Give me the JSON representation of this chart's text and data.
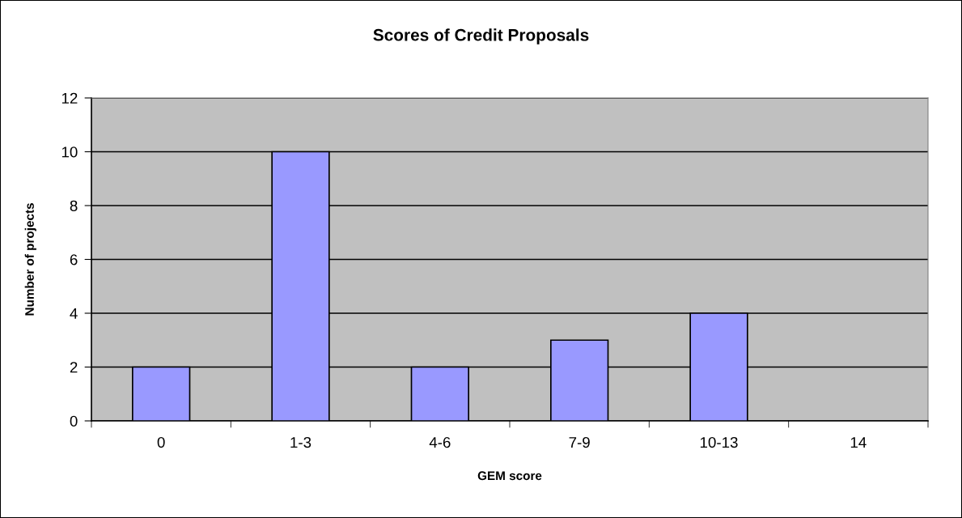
{
  "chart_data": {
    "type": "bar",
    "title": "Scores of Credit Proposals",
    "xlabel": "GEM score",
    "ylabel": "Number of projects",
    "categories": [
      "0",
      "1-3",
      "4-6",
      "7-9",
      "10-13",
      "14"
    ],
    "values": [
      2,
      10,
      2,
      3,
      4,
      0
    ],
    "color": "#9999ff",
    "ylim": [
      0,
      12
    ],
    "yticks": [
      0,
      2,
      4,
      6,
      8,
      10,
      12
    ],
    "grid": "y",
    "legend": false
  }
}
